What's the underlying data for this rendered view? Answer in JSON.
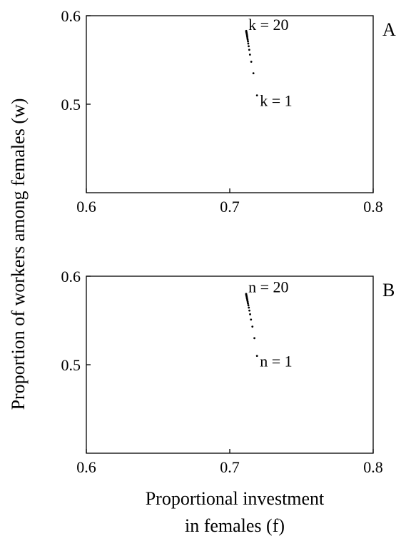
{
  "ylabel": "Proportion of workers among females (w)",
  "xlabel_lines": [
    "Proportional investment",
    "in females (f)"
  ],
  "chart_data": [
    {
      "panel": "A",
      "type": "scatter",
      "xlim": [
        0.6,
        0.8
      ],
      "ylim": [
        0.4,
        0.6
      ],
      "xticks": [
        0.6,
        0.7,
        0.8
      ],
      "yticks": [
        0.5,
        0.6
      ],
      "xtick_labels": [
        "0.6",
        "0.7",
        "0.8"
      ],
      "ytick_labels": [
        "0.5",
        "0.6"
      ],
      "grid": false,
      "series": [
        {
          "points": [
            {
              "x": 0.719,
              "y": 0.51
            },
            {
              "x": 0.7165,
              "y": 0.535
            },
            {
              "x": 0.715,
              "y": 0.548
            },
            {
              "x": 0.7141,
              "y": 0.556
            },
            {
              "x": 0.7136,
              "y": 0.5615
            },
            {
              "x": 0.7132,
              "y": 0.5655
            },
            {
              "x": 0.7129,
              "y": 0.5685
            },
            {
              "x": 0.7127,
              "y": 0.571
            },
            {
              "x": 0.7125,
              "y": 0.573
            },
            {
              "x": 0.7123,
              "y": 0.5746
            },
            {
              "x": 0.7122,
              "y": 0.576
            },
            {
              "x": 0.7121,
              "y": 0.5772
            },
            {
              "x": 0.712,
              "y": 0.5782
            },
            {
              "x": 0.7119,
              "y": 0.5791
            },
            {
              "x": 0.7118,
              "y": 0.5799
            },
            {
              "x": 0.7117,
              "y": 0.5806
            },
            {
              "x": 0.7116,
              "y": 0.5812
            },
            {
              "x": 0.7116,
              "y": 0.5818
            },
            {
              "x": 0.7115,
              "y": 0.5823
            },
            {
              "x": 0.7115,
              "y": 0.5828
            }
          ]
        }
      ],
      "annotations": [
        {
          "text": "k = 20",
          "x": 0.713,
          "y": 0.584
        },
        {
          "text": "k = 1",
          "x": 0.721,
          "y": 0.498
        }
      ]
    },
    {
      "panel": "B",
      "type": "scatter",
      "xlim": [
        0.6,
        0.8
      ],
      "ylim": [
        0.4,
        0.6
      ],
      "xticks": [
        0.6,
        0.7,
        0.8
      ],
      "yticks": [
        0.5,
        0.6
      ],
      "xtick_labels": [
        "0.6",
        "0.7",
        "0.8"
      ],
      "ytick_labels": [
        "0.5",
        "0.6"
      ],
      "grid": false,
      "series": [
        {
          "points": [
            {
              "x": 0.719,
              "y": 0.51
            },
            {
              "x": 0.7172,
              "y": 0.53
            },
            {
              "x": 0.7158,
              "y": 0.543
            },
            {
              "x": 0.7148,
              "y": 0.551
            },
            {
              "x": 0.7142,
              "y": 0.557
            },
            {
              "x": 0.7137,
              "y": 0.5612
            },
            {
              "x": 0.7133,
              "y": 0.5645
            },
            {
              "x": 0.713,
              "y": 0.5671
            },
            {
              "x": 0.7127,
              "y": 0.5692
            },
            {
              "x": 0.7125,
              "y": 0.571
            },
            {
              "x": 0.7123,
              "y": 0.5725
            },
            {
              "x": 0.7122,
              "y": 0.5738
            },
            {
              "x": 0.712,
              "y": 0.5749
            },
            {
              "x": 0.7119,
              "y": 0.5759
            },
            {
              "x": 0.7118,
              "y": 0.5768
            },
            {
              "x": 0.7117,
              "y": 0.5776
            },
            {
              "x": 0.7116,
              "y": 0.5783
            },
            {
              "x": 0.7115,
              "y": 0.5789
            },
            {
              "x": 0.7115,
              "y": 0.5795
            },
            {
              "x": 0.7114,
              "y": 0.58
            }
          ]
        }
      ],
      "annotations": [
        {
          "text": "n = 20",
          "x": 0.713,
          "y": 0.582
        },
        {
          "text": "n = 1",
          "x": 0.721,
          "y": 0.498
        }
      ]
    }
  ]
}
